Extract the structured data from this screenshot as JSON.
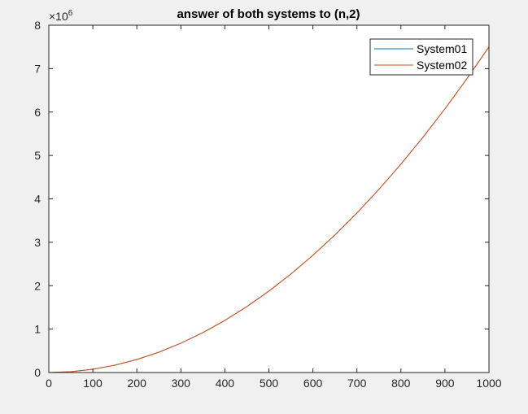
{
  "chart_data": {
    "type": "line",
    "title": "answer of both systems to (n,2)",
    "xlabel": "",
    "ylabel": "",
    "xlim": [
      0,
      1000
    ],
    "ylim": [
      0,
      8000000
    ],
    "y_exponent_label": "×10",
    "y_exponent_power": "6",
    "xticks": [
      0,
      100,
      200,
      300,
      400,
      500,
      600,
      700,
      800,
      900,
      1000
    ],
    "xtick_labels": [
      "0",
      "100",
      "200",
      "300",
      "400",
      "500",
      "600",
      "700",
      "800",
      "900",
      "1000"
    ],
    "yticks": [
      0,
      1000000,
      2000000,
      3000000,
      4000000,
      5000000,
      6000000,
      7000000,
      8000000
    ],
    "ytick_labels": [
      "0",
      "1",
      "2",
      "3",
      "4",
      "5",
      "6",
      "7",
      "8"
    ],
    "grid": false,
    "legend_position": "top-right",
    "series": [
      {
        "name": "System01",
        "color": "#0072BD",
        "x": [
          0,
          50,
          100,
          150,
          200,
          250,
          300,
          350,
          400,
          450,
          500,
          550,
          600,
          650,
          700,
          750,
          800,
          850,
          900,
          950,
          1000
        ],
        "y": [
          0,
          18750,
          75000,
          168750,
          300000,
          468750,
          675000,
          918750,
          1200000,
          1518750,
          1875000,
          2268750,
          2700000,
          3168750,
          3675000,
          4218750,
          4800000,
          5418750,
          6075000,
          6768750,
          7500000
        ]
      },
      {
        "name": "System02",
        "color": "#D95319",
        "x": [
          0,
          50,
          100,
          150,
          200,
          250,
          300,
          350,
          400,
          450,
          500,
          550,
          600,
          650,
          700,
          750,
          800,
          850,
          900,
          950,
          1000
        ],
        "y": [
          0,
          18750,
          75000,
          168750,
          300000,
          468750,
          675000,
          918750,
          1200000,
          1518750,
          1875000,
          2268750,
          2700000,
          3168750,
          3675000,
          4218750,
          4800000,
          5418750,
          6075000,
          6768750,
          7500000
        ]
      }
    ]
  }
}
